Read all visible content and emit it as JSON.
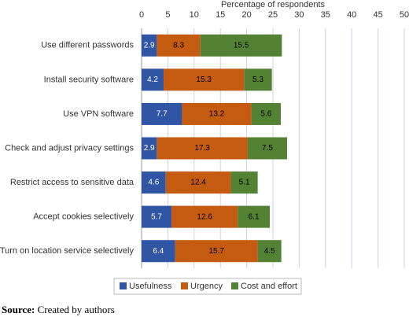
{
  "chart_data": {
    "type": "stacked-barh",
    "x_label": "Percentage of respondents",
    "categories": [
      "Use different passwords",
      "Install security software",
      "Use VPN software",
      "Check and adjust privacy settings",
      "Restrict access to sensitive data",
      "Accept cookies selectively",
      "Turn on location service selectively"
    ],
    "series": [
      {
        "name": "Usefulness",
        "color": "#2f55a4",
        "label_color": "#ffffff",
        "values": [
          2.9,
          4.2,
          7.7,
          2.9,
          4.6,
          5.7,
          6.4
        ]
      },
      {
        "name": "Urgency",
        "color": "#c55a11",
        "label_color": "#000000",
        "values": [
          8.3,
          15.3,
          13.2,
          17.3,
          12.4,
          12.6,
          15.7
        ]
      },
      {
        "name": "Cost and effort",
        "color": "#548235",
        "label_color": "#000000",
        "values": [
          15.5,
          5.3,
          5.6,
          7.5,
          5.1,
          6.1,
          4.5
        ]
      }
    ],
    "xlim": [
      0,
      50
    ],
    "xticks": [
      0,
      5,
      10,
      15,
      20,
      25,
      30,
      35,
      40,
      45,
      50
    ],
    "grid": true,
    "legend": "bottom",
    "source": {
      "label": "Source:",
      "text": "Created by authors"
    }
  }
}
